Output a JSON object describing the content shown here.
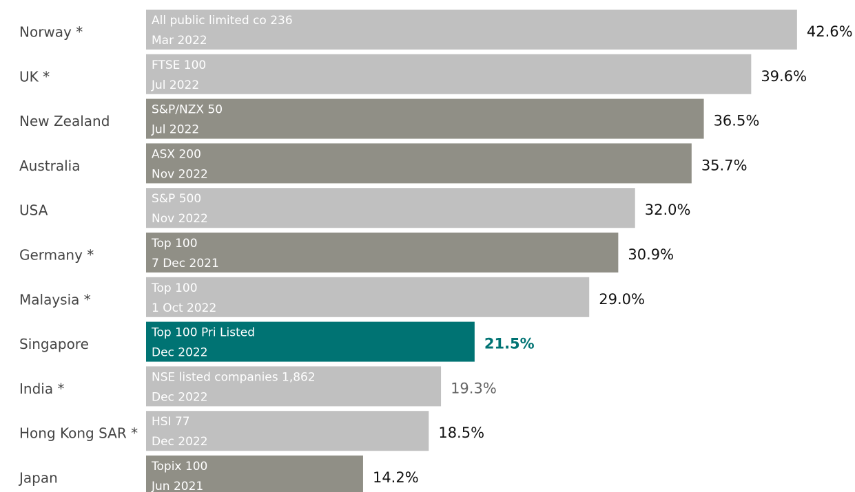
{
  "chart_data": {
    "type": "bar",
    "orientation": "horizontal",
    "categories": [
      "Norway *",
      "UK *",
      "New Zealand",
      "Australia",
      "USA",
      "Germany *",
      "Malaysia *",
      "Singapore",
      "India *",
      "Hong Kong SAR *",
      "Japan"
    ],
    "values": [
      42.6,
      39.6,
      36.5,
      35.7,
      32.0,
      30.9,
      29.0,
      21.5,
      19.3,
      18.5,
      14.2
    ],
    "value_labels": [
      "42.6%",
      "39.6%",
      "36.5%",
      "35.7%",
      "32.0%",
      "30.9%",
      "29.0%",
      "21.5%",
      "19.3%",
      "18.5%",
      "14.2%"
    ],
    "notes": [
      [
        "All public limited co 236",
        "Mar 2022"
      ],
      [
        "FTSE 100",
        "Jul 2022"
      ],
      [
        "S&P/NZX 50",
        "Jul 2022"
      ],
      [
        "ASX 200",
        "Nov 2022"
      ],
      [
        "S&P 500",
        "Nov 2022"
      ],
      [
        "Top 100",
        "7 Dec 2021"
      ],
      [
        "Top 100",
        "1 Oct 2022"
      ],
      [
        "Top 100 Pri Listed",
        "Dec 2022"
      ],
      [
        "NSE listed companies 1,862",
        "Dec 2022"
      ],
      [
        "HSI 77",
        "Dec 2022"
      ],
      [
        "Topix 100",
        "Jun 2021"
      ]
    ],
    "colors": [
      "#c0c0c0",
      "#c0c0c0",
      "#908f86",
      "#908f86",
      "#c0c0c0",
      "#908f86",
      "#c0c0c0",
      "#007373",
      "#c0c0c0",
      "#c0c0c0",
      "#908f86"
    ],
    "label_colors": [
      "#111111",
      "#111111",
      "#111111",
      "#111111",
      "#111111",
      "#111111",
      "#111111",
      "#007373",
      "#666666",
      "#111111",
      "#111111"
    ],
    "highlight": "Singapore"
  }
}
